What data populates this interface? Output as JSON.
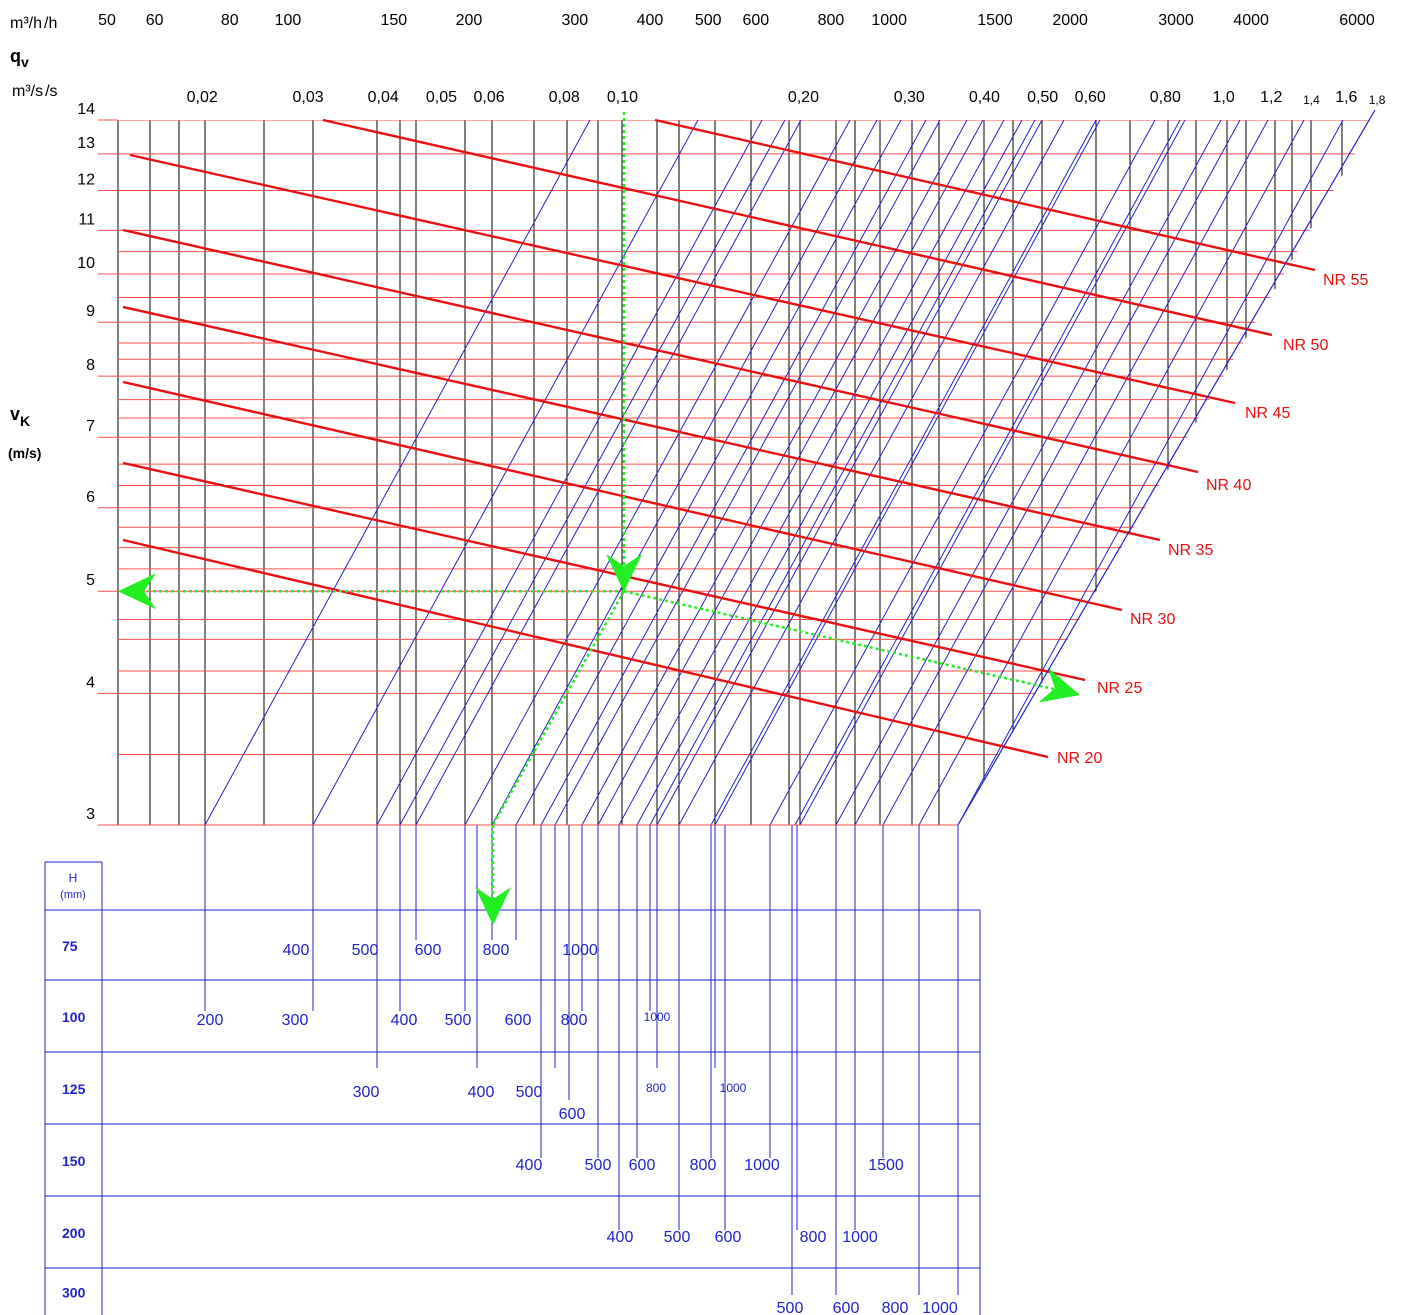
{
  "chart_data": {
    "type": "line",
    "title": "",
    "flow_axis": {
      "unit_m3h": "m³/h",
      "symbol": "q",
      "symbol_sub": "v",
      "unit_m3s": "m³/s",
      "m3h_ticks": [
        "50",
        "60",
        "80",
        "100",
        "150",
        "200",
        "300",
        "400",
        "500",
        "600",
        "800",
        "1000",
        "1500",
        "2000",
        "3000",
        "4000",
        "6000"
      ],
      "m3s_ticks": [
        "0,02",
        "0,03",
        "0,04",
        "0,05",
        "0,06",
        "0,08",
        "0,10",
        "0,20",
        "0,30",
        "0,40",
        "0,50",
        "0,60",
        "0,80",
        "1,0",
        "1,2",
        "1,4",
        "1,6",
        "1,8"
      ]
    },
    "velocity_axis": {
      "symbol": "v",
      "symbol_sub": "K",
      "unit": "(m/s)",
      "ticks": [
        "3",
        "4",
        "5",
        "6",
        "7",
        "8",
        "9",
        "10",
        "11",
        "12",
        "13",
        "14"
      ],
      "range": [
        3,
        14
      ]
    },
    "nr_curves": [
      "NR 20",
      "NR 25",
      "NR 30",
      "NR 35",
      "NR 40",
      "NR 45",
      "NR 50",
      "NR 55"
    ],
    "length_table": {
      "header": "H",
      "header_unit": "(mm)",
      "rows": [
        {
          "h": "75",
          "lengths": [
            "400",
            "500",
            "600",
            "800",
            "1000"
          ]
        },
        {
          "h": "100",
          "lengths": [
            "200",
            "300",
            "400",
            "500",
            "600",
            "800",
            "1000"
          ]
        },
        {
          "h": "125",
          "lengths": [
            "300",
            "400",
            "500",
            "600",
            "800",
            "1000"
          ]
        },
        {
          "h": "150",
          "lengths": [
            "400",
            "500",
            "600",
            "800",
            "1000",
            "1500"
          ]
        },
        {
          "h": "200",
          "lengths": [
            "400",
            "500",
            "600",
            "800",
            "1000"
          ]
        },
        {
          "h": "300",
          "lengths": [
            "500",
            "600",
            "800",
            "1000"
          ]
        }
      ]
    },
    "example": {
      "flow_m3s": 0.1,
      "velocity_ms": 5,
      "noise": "NR 25",
      "h_mm": 75,
      "length_mm": 800
    },
    "colors": {
      "grid_red": "#ff4d4d",
      "nr_red": "#e81010",
      "blue": "#2222cc",
      "green": "#22ee22",
      "black": "#000000"
    }
  }
}
